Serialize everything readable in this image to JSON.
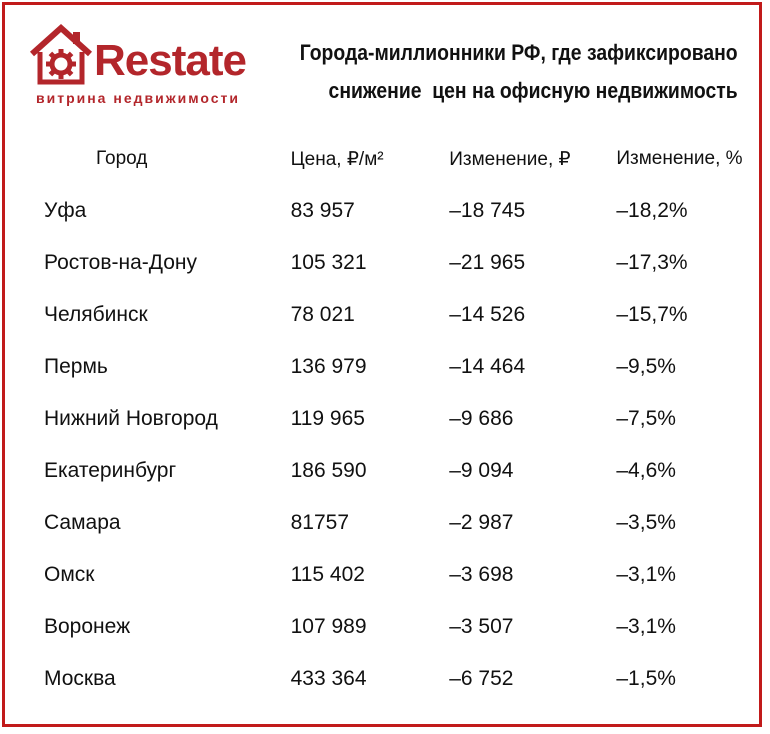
{
  "logo": {
    "word": "Restate",
    "subtitle": "витрина недвижимости",
    "accent_color": "#b3262b",
    "icon": "house-gear-icon"
  },
  "title": {
    "line1": "Города-миллионники РФ, где зафиксировано",
    "line2": "снижение  цен на офисную недвижимость"
  },
  "table": {
    "headers": [
      "Город",
      "Цена, ₽/м²",
      "Изменение, ₽",
      "Изменение, %"
    ],
    "rows": [
      [
        "Уфа",
        "83 957",
        "–18 745",
        "–18,2%"
      ],
      [
        "Ростов-на-Дону",
        "105 321",
        "–21 965",
        "–17,3%"
      ],
      [
        "Челябинск",
        "78 021",
        "–14 526",
        "–15,7%"
      ],
      [
        "Пермь",
        "136 979",
        "–14 464",
        "–9,5%"
      ],
      [
        "Нижний Новгород",
        "119 965",
        "–9 686",
        "–7,5%"
      ],
      [
        "Екатеринбург",
        "186 590",
        "–9 094",
        "–4,6%"
      ],
      [
        "Самара",
        "81757",
        "–2 987",
        "–3,5%"
      ],
      [
        "Омск",
        "115 402",
        "–3 698",
        "–3,1%"
      ],
      [
        "Воронеж",
        "107 989",
        "–3 507",
        "–3,1%"
      ],
      [
        "Москва",
        "433 364",
        "–6 752",
        "–1,5%"
      ]
    ]
  },
  "colors": {
    "frame": "#c11a1a",
    "text": "#111111"
  }
}
